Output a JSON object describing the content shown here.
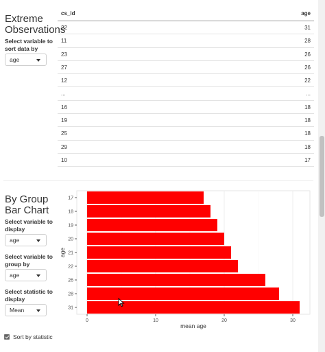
{
  "extreme": {
    "title_line1": "Extreme",
    "title_line2": "Observations",
    "sort_label_line1": "Select variable to",
    "sort_label_line2": "sort data by",
    "sort_value": "age",
    "columns": [
      "cs_id",
      "age"
    ],
    "rows": [
      [
        "22",
        "31"
      ],
      [
        "11",
        "28"
      ],
      [
        "23",
        "26"
      ],
      [
        "27",
        "26"
      ],
      [
        "12",
        "22"
      ],
      [
        "...",
        "..."
      ],
      [
        "16",
        "18"
      ],
      [
        "19",
        "18"
      ],
      [
        "25",
        "18"
      ],
      [
        "29",
        "18"
      ],
      [
        "10",
        "17"
      ]
    ]
  },
  "group_bar": {
    "title_line1": "By Group",
    "title_line2": "Bar Chart",
    "var_label_line1": "Select variable to",
    "var_label_line2": "display",
    "var_value": "age",
    "group_label_line1": "Select variable to",
    "group_label_line2": "group by",
    "group_value": "age",
    "stat_label_line1": "Select statistic to",
    "stat_label_line2": "display",
    "stat_value": "Mean",
    "sort_checkbox_label": "Sort by statistic",
    "sort_checked": true
  },
  "chart_data": {
    "type": "bar",
    "orientation": "horizontal",
    "categories": [
      "17",
      "18",
      "19",
      "20",
      "21",
      "22",
      "26",
      "28",
      "31"
    ],
    "values": [
      17,
      18,
      19,
      20,
      21,
      22,
      26,
      28,
      31
    ],
    "xlabel": "mean age",
    "ylabel": "age",
    "xlim": [
      -1.5,
      32.5
    ],
    "xticks": [
      "0",
      "10",
      "20",
      "30"
    ],
    "bar_color": "#ff0000",
    "panel_color": "#ffffff",
    "grid": true
  }
}
